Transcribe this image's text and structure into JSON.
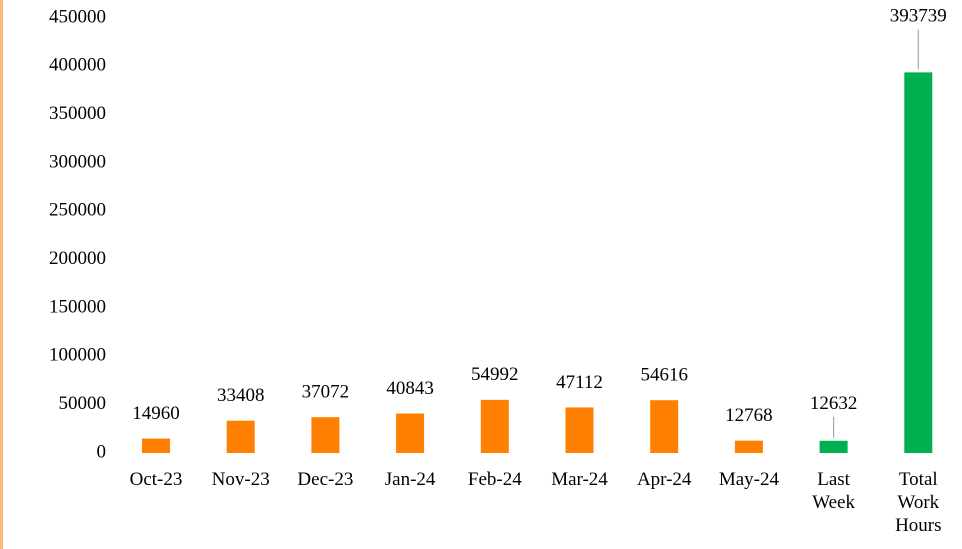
{
  "chart_data": {
    "type": "bar",
    "categories": [
      "Oct-23",
      "Nov-23",
      "Dec-23",
      "Jan-24",
      "Feb-24",
      "Mar-24",
      "Apr-24",
      "May-24",
      "Last Week",
      "Total Work Hours"
    ],
    "values": [
      14960,
      33408,
      37072,
      40843,
      54992,
      47112,
      54616,
      12768,
      12632,
      393739
    ],
    "colors": [
      "#ff7f00",
      "#ff7f00",
      "#ff7f00",
      "#ff7f00",
      "#ff7f00",
      "#ff7f00",
      "#ff7f00",
      "#ff7f00",
      "#00b050",
      "#00b050"
    ],
    "ylim": [
      0,
      450000
    ],
    "yticks": [
      0,
      50000,
      100000,
      150000,
      200000,
      250000,
      300000,
      350000,
      400000,
      450000
    ],
    "grid": false
  }
}
